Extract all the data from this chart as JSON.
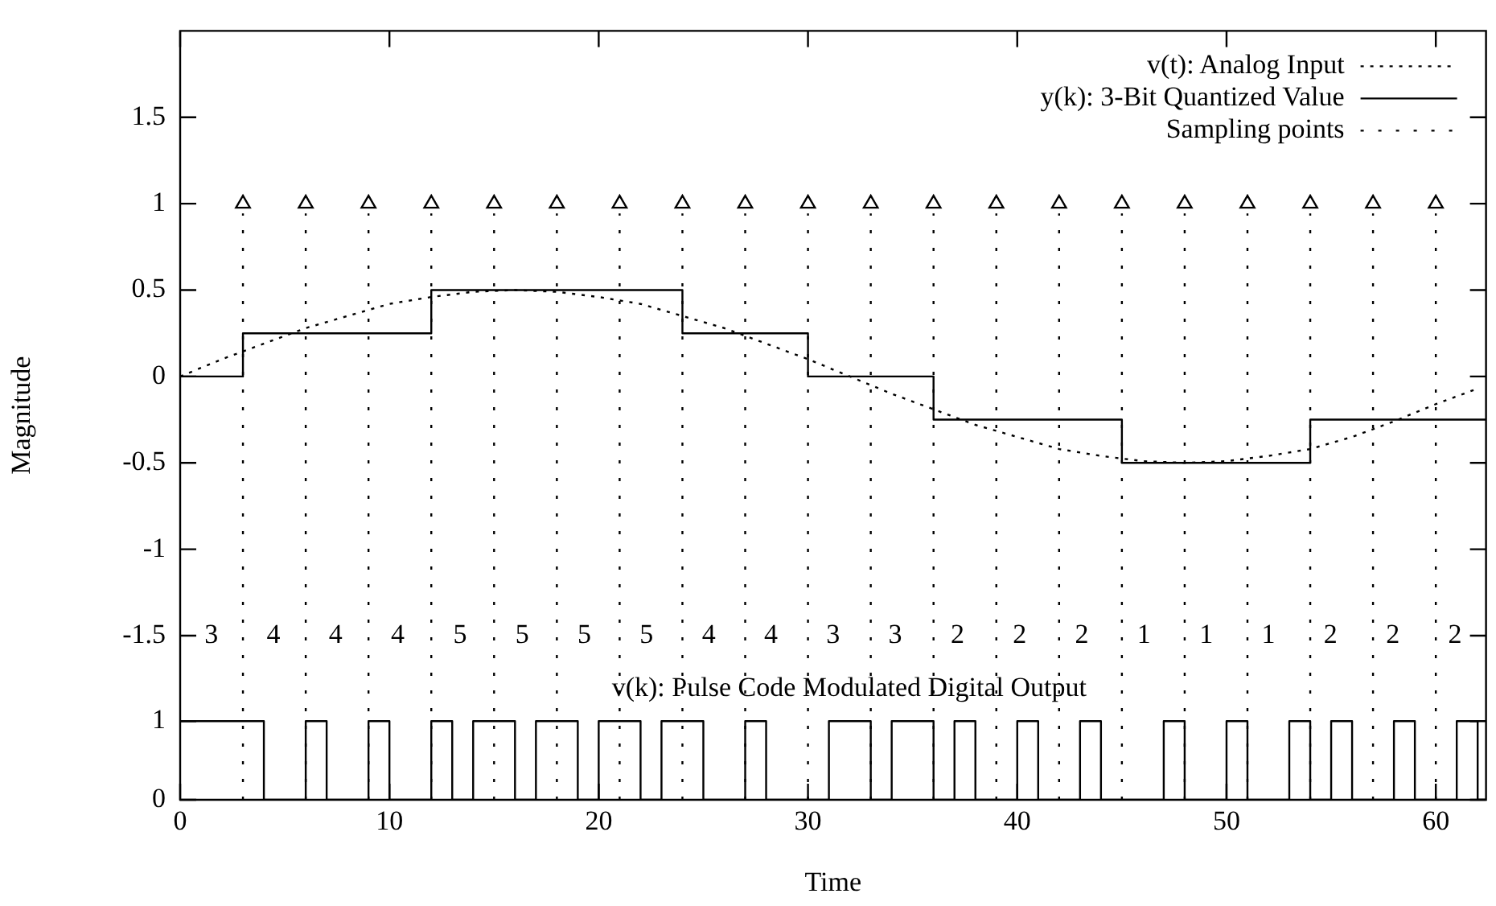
{
  "chart_data": {
    "type": "line",
    "xlabel": "Time",
    "ylabel": "Magnitude",
    "xlim": [
      0,
      62.4
    ],
    "xticks": [
      0,
      10,
      20,
      30,
      40,
      50,
      60
    ],
    "ylim": [
      -2.45,
      2
    ],
    "yticks": [
      -1.5,
      -1,
      -0.5,
      0,
      0.5,
      1,
      1.5
    ],
    "y2lim": [
      0,
      9.78
    ],
    "y2ticks": [
      0,
      1
    ],
    "grid": false,
    "legend": "top right",
    "marker": "none",
    "series": [
      {
        "name": "v(t): Analog Input",
        "line_style": "dotted",
        "color": "#000000",
        "x": [
          0,
          2,
          4,
          6,
          8,
          10,
          12,
          14,
          16,
          18,
          20,
          22,
          24,
          26,
          28,
          30,
          32,
          34,
          36,
          38,
          40,
          42,
          44,
          46,
          48,
          50,
          52,
          54,
          56,
          58,
          60,
          62
        ],
        "values": [
          0,
          0.1,
          0.19,
          0.28,
          0.35,
          0.42,
          0.46,
          0.49,
          0.5,
          0.49,
          0.46,
          0.42,
          0.35,
          0.28,
          0.19,
          0.1,
          0,
          -0.1,
          -0.19,
          -0.28,
          -0.35,
          -0.42,
          -0.46,
          -0.49,
          -0.5,
          -0.49,
          -0.46,
          -0.42,
          -0.35,
          -0.26,
          -0.16,
          -0.07
        ]
      },
      {
        "name": "y(k): 3-Bit Quantized Value",
        "type": "step",
        "line_style": "solid",
        "color": "#000000",
        "x": [
          0,
          3,
          12,
          24,
          30,
          36,
          45,
          54,
          62.4
        ],
        "values": [
          0,
          0.25,
          0.5,
          0.25,
          0,
          -0.25,
          -0.5,
          -0.25,
          -0.25
        ]
      },
      {
        "name": "Sampling points",
        "type": "scatter",
        "marker": "triangle",
        "line_style": "dotted",
        "color": "#000000",
        "x": [
          3,
          6,
          9,
          12,
          15,
          18,
          21,
          24,
          27,
          30,
          33,
          36,
          39,
          42,
          45,
          48,
          51,
          54,
          57,
          60
        ],
        "values": [
          1,
          1,
          1,
          1,
          1,
          1,
          1,
          1,
          1,
          1,
          1,
          1,
          1,
          1,
          1,
          1,
          1,
          1,
          1,
          1
        ]
      },
      {
        "name": "v(k): Pulse Code Modulated Digital Output",
        "type": "step",
        "axis": "y2",
        "line_style": "solid",
        "color": "#000000",
        "x": [
          0,
          1,
          2,
          3,
          4,
          5,
          6,
          7,
          8,
          9,
          10,
          11,
          12,
          13,
          14,
          15,
          16,
          17,
          18,
          19,
          20,
          21,
          22,
          23,
          24,
          25,
          26,
          27,
          28,
          29,
          30,
          31,
          32,
          33,
          34,
          35,
          36,
          37,
          38,
          39,
          40,
          41,
          42,
          43,
          44,
          45,
          46,
          47,
          48,
          49,
          50,
          51,
          52,
          53,
          54,
          55,
          56,
          57,
          58,
          59,
          60,
          61,
          62,
          62.4
        ],
        "values": [
          1,
          1,
          1,
          1,
          0,
          0,
          1,
          0,
          0,
          1,
          0,
          0,
          1,
          0,
          1,
          1,
          0,
          1,
          1,
          0,
          1,
          1,
          0,
          1,
          1,
          0,
          0,
          1,
          0,
          0,
          0,
          1,
          1,
          0,
          1,
          1,
          0,
          1,
          0,
          0,
          1,
          0,
          0,
          1,
          0,
          0,
          0,
          1,
          0,
          0,
          1,
          0,
          0,
          1,
          0,
          1,
          0,
          0,
          1,
          0,
          0,
          1,
          0,
          0
        ]
      }
    ],
    "ref_lines": [
      {
        "axis": "x",
        "value": 3,
        "line_style": "dotted"
      },
      {
        "axis": "x",
        "value": 6,
        "line_style": "dotted"
      },
      {
        "axis": "x",
        "value": 9,
        "line_style": "dotted"
      },
      {
        "axis": "x",
        "value": 12,
        "line_style": "dotted"
      },
      {
        "axis": "x",
        "value": 15,
        "line_style": "dotted"
      },
      {
        "axis": "x",
        "value": 18,
        "line_style": "dotted"
      },
      {
        "axis": "x",
        "value": 21,
        "line_style": "dotted"
      },
      {
        "axis": "x",
        "value": 24,
        "line_style": "dotted"
      },
      {
        "axis": "x",
        "value": 27,
        "line_style": "dotted"
      },
      {
        "axis": "x",
        "value": 30,
        "line_style": "dotted"
      },
      {
        "axis": "x",
        "value": 33,
        "line_style": "dotted"
      },
      {
        "axis": "x",
        "value": 36,
        "line_style": "dotted"
      },
      {
        "axis": "x",
        "value": 39,
        "line_style": "dotted"
      },
      {
        "axis": "x",
        "value": 42,
        "line_style": "dotted"
      },
      {
        "axis": "x",
        "value": 45,
        "line_style": "dotted"
      },
      {
        "axis": "x",
        "value": 48,
        "line_style": "dotted"
      },
      {
        "axis": "x",
        "value": 51,
        "line_style": "dotted"
      },
      {
        "axis": "x",
        "value": 54,
        "line_style": "dotted"
      },
      {
        "axis": "x",
        "value": 57,
        "line_style": "dotted"
      },
      {
        "axis": "x",
        "value": 60,
        "line_style": "dotted"
      }
    ],
    "annotations": [
      "3",
      "4",
      "4",
      "4",
      "5",
      "5",
      "5",
      "5",
      "4",
      "4",
      "3",
      "3",
      "2",
      "2",
      "2",
      "1",
      "1",
      "1",
      "2",
      "2",
      "2"
    ]
  }
}
